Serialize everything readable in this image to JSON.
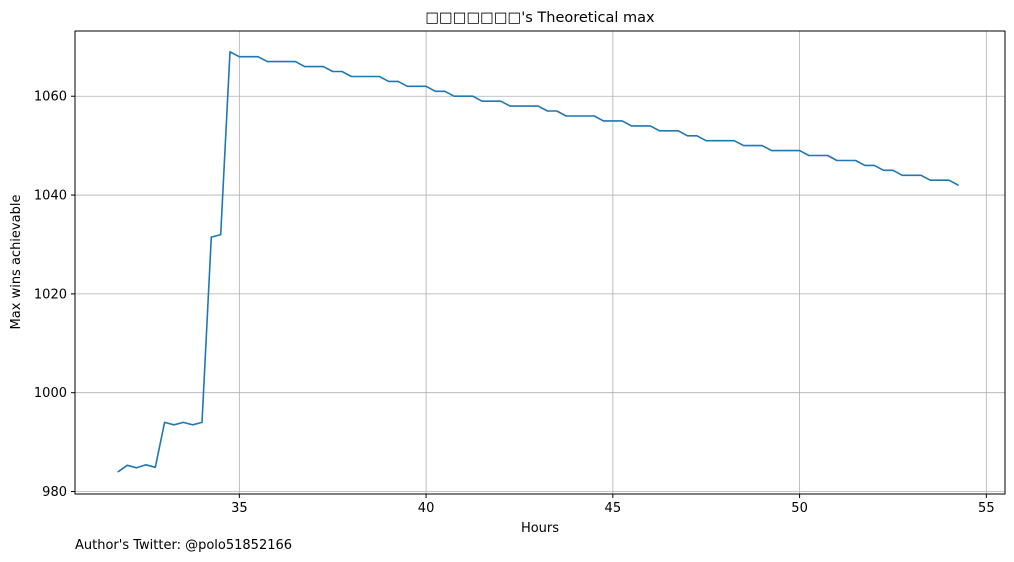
{
  "chart_data": {
    "type": "line",
    "title": "□□□□□□□'s Theoretical max",
    "xlabel": "Hours",
    "ylabel": "Max wins achievable",
    "xlim": [
      30.6,
      55.5
    ],
    "ylim": [
      979.5,
      1073.2
    ],
    "xticks": [
      35,
      40,
      45,
      50,
      55
    ],
    "yticks": [
      980,
      1000,
      1020,
      1040,
      1060
    ],
    "grid": true,
    "series": [
      {
        "color": "#1f77b4",
        "x": [
          31.75,
          32.0,
          32.25,
          32.5,
          32.75,
          33.0,
          33.25,
          33.5,
          33.75,
          34.0,
          34.25,
          34.5,
          34.75,
          35.0,
          35.25,
          35.5,
          35.75,
          36.0,
          36.25,
          36.5,
          36.75,
          37.0,
          37.25,
          37.5,
          37.75,
          38.0,
          38.25,
          38.5,
          38.75,
          39.0,
          39.25,
          39.5,
          39.75,
          40.0,
          40.25,
          40.5,
          40.75,
          41.0,
          41.25,
          41.5,
          41.75,
          42.0,
          42.25,
          42.5,
          42.75,
          43.0,
          43.25,
          43.5,
          43.75,
          44.0,
          44.25,
          44.5,
          44.75,
          45.0,
          45.25,
          45.5,
          45.75,
          46.0,
          46.25,
          46.5,
          46.75,
          47.0,
          47.25,
          47.5,
          47.75,
          48.0,
          48.25,
          48.5,
          48.75,
          49.0,
          49.25,
          49.5,
          49.75,
          50.0,
          50.25,
          50.5,
          50.75,
          51.0,
          51.25,
          51.5,
          51.75,
          52.0,
          52.25,
          52.5,
          52.75,
          53.0,
          53.25,
          53.5,
          53.75,
          54.0,
          54.25
        ],
        "y": [
          984,
          985.3,
          984.8,
          985.4,
          984.9,
          994,
          993.5,
          994,
          993.5,
          994,
          1031.5,
          1032,
          1069,
          1068,
          1068,
          1068,
          1067,
          1067,
          1067,
          1067,
          1066,
          1066,
          1066,
          1065,
          1065,
          1064,
          1064,
          1064,
          1064,
          1063,
          1063,
          1062,
          1062,
          1062,
          1061,
          1061,
          1060,
          1060,
          1060,
          1059,
          1059,
          1059,
          1058,
          1058,
          1058,
          1058,
          1057,
          1057,
          1056,
          1056,
          1056,
          1056,
          1055,
          1055,
          1055,
          1054,
          1054,
          1054,
          1053,
          1053,
          1053,
          1052,
          1052,
          1051,
          1051,
          1051,
          1051,
          1050,
          1050,
          1050,
          1049,
          1049,
          1049,
          1049,
          1048,
          1048,
          1048,
          1047,
          1047,
          1047,
          1046,
          1046,
          1045,
          1045,
          1044,
          1044,
          1044,
          1043,
          1043,
          1043,
          1042
        ]
      }
    ]
  },
  "footer": {
    "author": "Author's Twitter: @polo51852166"
  }
}
